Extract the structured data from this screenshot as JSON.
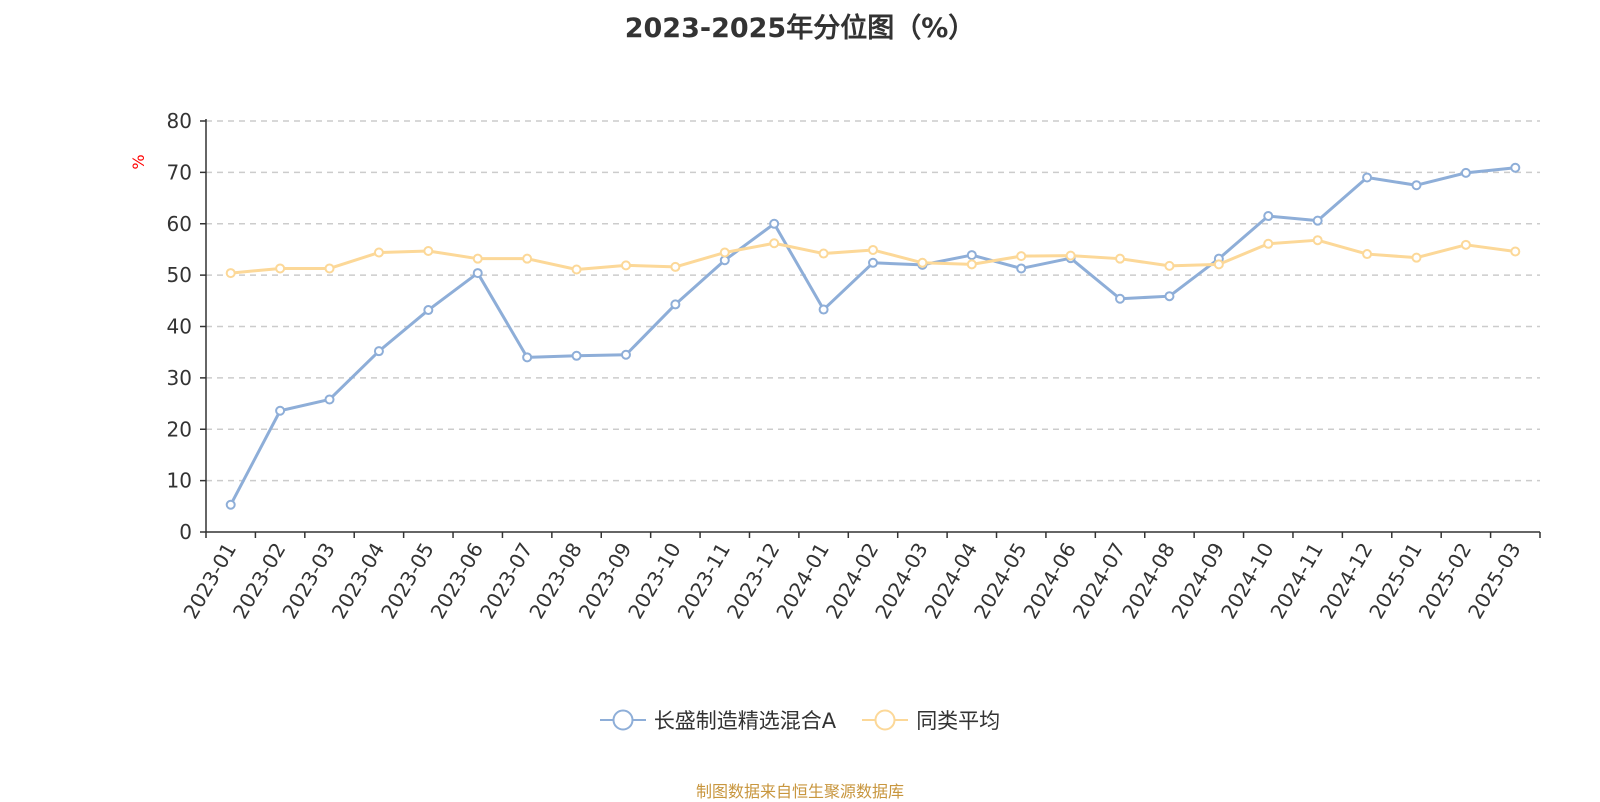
{
  "chart_data": {
    "type": "line",
    "title": "2023-2025年分位图（%）",
    "ylabel": "%",
    "xlabel": "",
    "ylim": [
      0,
      80
    ],
    "yticks": [
      0,
      10,
      20,
      30,
      40,
      50,
      60,
      70,
      80
    ],
    "grid": true,
    "legend_position": "bottom",
    "categories": [
      "2023-01",
      "2023-02",
      "2023-03",
      "2023-04",
      "2023-05",
      "2023-06",
      "2023-07",
      "2023-08",
      "2023-09",
      "2023-10",
      "2023-11",
      "2023-12",
      "2024-01",
      "2024-02",
      "2024-03",
      "2024-04",
      "2024-05",
      "2024-06",
      "2024-07",
      "2024-08",
      "2024-09",
      "2024-10",
      "2024-11",
      "2024-12",
      "2025-01",
      "2025-02",
      "2025-03"
    ],
    "series": [
      {
        "name": "长盛制造精选混合A",
        "color": "#8eaed8",
        "values": [
          5.3,
          23.6,
          25.8,
          35.2,
          43.2,
          50.4,
          34.0,
          34.3,
          34.5,
          44.3,
          52.9,
          60.0,
          43.3,
          52.4,
          52.0,
          53.9,
          51.3,
          53.3,
          45.4,
          45.9,
          53.2,
          61.5,
          60.6,
          69.0,
          67.5,
          69.9,
          70.9
        ]
      },
      {
        "name": "同类平均",
        "color": "#fcd898",
        "values": [
          50.4,
          51.3,
          51.3,
          54.4,
          54.7,
          53.2,
          53.2,
          51.1,
          51.9,
          51.6,
          54.4,
          56.2,
          54.2,
          54.9,
          52.4,
          52.1,
          53.7,
          53.8,
          53.2,
          51.8,
          52.1,
          56.1,
          56.8,
          54.1,
          53.4,
          55.9,
          54.6
        ]
      }
    ]
  },
  "source_text": "制图数据来自恒生聚源数据库"
}
